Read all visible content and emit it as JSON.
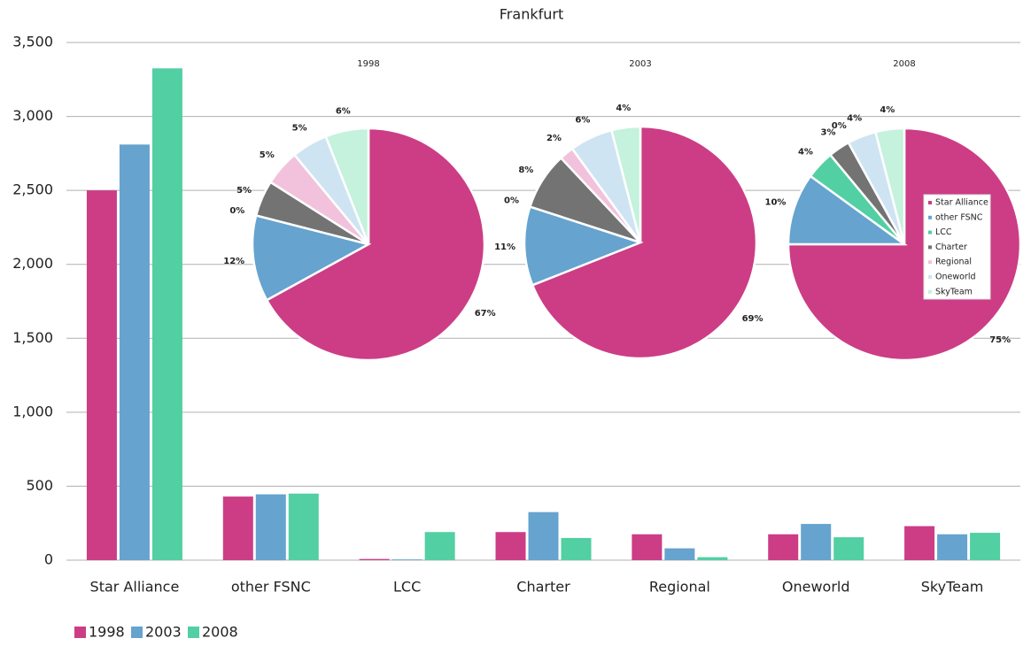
{
  "chart_data": [
    {
      "type": "bar",
      "title": "Frankfurt",
      "categories": [
        "Star Alliance",
        "other FSNC",
        "LCC",
        "Charter",
        "Regional",
        "Oneworld",
        "SkyTeam"
      ],
      "series": [
        {
          "name": "1998",
          "color": "#cc3d85",
          "values": [
            2500,
            430,
            8,
            190,
            175,
            175,
            230
          ]
        },
        {
          "name": "2003",
          "color": "#66a3cf",
          "values": [
            2810,
            445,
            5,
            325,
            80,
            245,
            175
          ]
        },
        {
          "name": "2008",
          "color": "#52cfa3",
          "values": [
            3325,
            450,
            190,
            150,
            20,
            155,
            185
          ]
        }
      ],
      "ylim": [
        0,
        3500
      ],
      "yticks": [
        0,
        500,
        {
          "value": 1000,
          "label": "1,000"
        },
        {
          "value": 1500,
          "label": "1,500"
        },
        {
          "value": 2000,
          "label": "2,000"
        },
        {
          "value": 2500,
          "label": "2,500"
        },
        {
          "value": 3000,
          "label": "3,000"
        },
        {
          "value": 3500,
          "label": "3,500"
        }
      ],
      "grid": true,
      "legend": "bottom-left"
    },
    {
      "type": "pie",
      "title": "1998",
      "categories": [
        "Star Alliance",
        "other FSNC",
        "LCC",
        "Charter",
        "Regional",
        "Oneworld",
        "SkyTeam"
      ],
      "colors": [
        "#cc3d85",
        "#66a3cf",
        "#52cfa3",
        "#737373",
        "#f2c2dc",
        "#cfe4f2",
        "#c4f2dc"
      ],
      "values": [
        67,
        12,
        0,
        5,
        5,
        5,
        6
      ],
      "value_labels": [
        "67%",
        "12%",
        "0%",
        "5%",
        "5%",
        "5%",
        "6%"
      ],
      "legend": false
    },
    {
      "type": "pie",
      "title": "2003",
      "categories": [
        "Star Alliance",
        "other FSNC",
        "LCC",
        "Charter",
        "Regional",
        "Oneworld",
        "SkyTeam"
      ],
      "colors": [
        "#cc3d85",
        "#66a3cf",
        "#52cfa3",
        "#737373",
        "#f2c2dc",
        "#cfe4f2",
        "#c4f2dc"
      ],
      "values": [
        69,
        11,
        0,
        8,
        2,
        6,
        4
      ],
      "value_labels": [
        "69%",
        "11%",
        "0%",
        "8%",
        "2%",
        "6%",
        "4%"
      ],
      "legend": false
    },
    {
      "type": "pie",
      "title": "2008",
      "categories": [
        "Star Alliance",
        "other FSNC",
        "LCC",
        "Charter",
        "Regional",
        "Oneworld",
        "SkyTeam"
      ],
      "colors": [
        "#cc3d85",
        "#66a3cf",
        "#52cfa3",
        "#737373",
        "#f2c2dc",
        "#cfe4f2",
        "#c4f2dc"
      ],
      "values": [
        75,
        10,
        4,
        3,
        0,
        4,
        4
      ],
      "value_labels": [
        "75%",
        "10%",
        "4%",
        "3%",
        "0%",
        "4%",
        "4%"
      ],
      "legend": true
    }
  ]
}
